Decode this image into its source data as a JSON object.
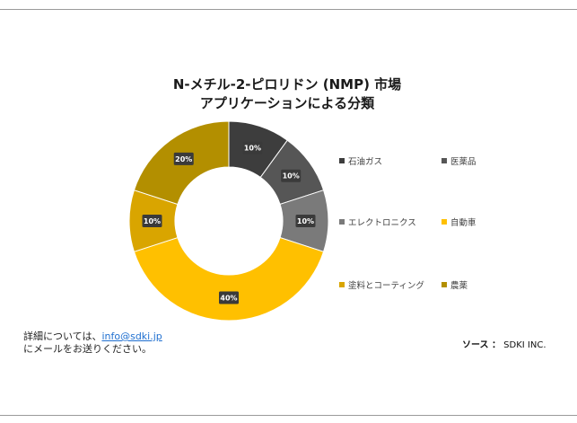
{
  "chart_data": {
    "type": "donut",
    "title_line1": "N-メチル-2-ピロリドン (NMP) 市場",
    "title_line2": "アプリケーションによる分類",
    "categories": [
      "石油ガス",
      "医薬品",
      "エレクトロニクス",
      "自動車",
      "塗料とコーティング",
      "農薬"
    ],
    "values": [
      10,
      10,
      10,
      40,
      10,
      20
    ],
    "data_labels": [
      "10%",
      "10%",
      "10%",
      "40%",
      "10%",
      "20%"
    ],
    "colors": [
      "#3d3d3d",
      "#565656",
      "#7a7a7a",
      "#ffc000",
      "#d9a500",
      "#b38f00"
    ],
    "legend_position": "right"
  },
  "contact": {
    "line1_prefix": "詳細については、",
    "email": "info@sdki.jp",
    "line2": "にメールをお送りください。"
  },
  "source": {
    "label": "ソース ：",
    "value": "SDKI INC."
  }
}
